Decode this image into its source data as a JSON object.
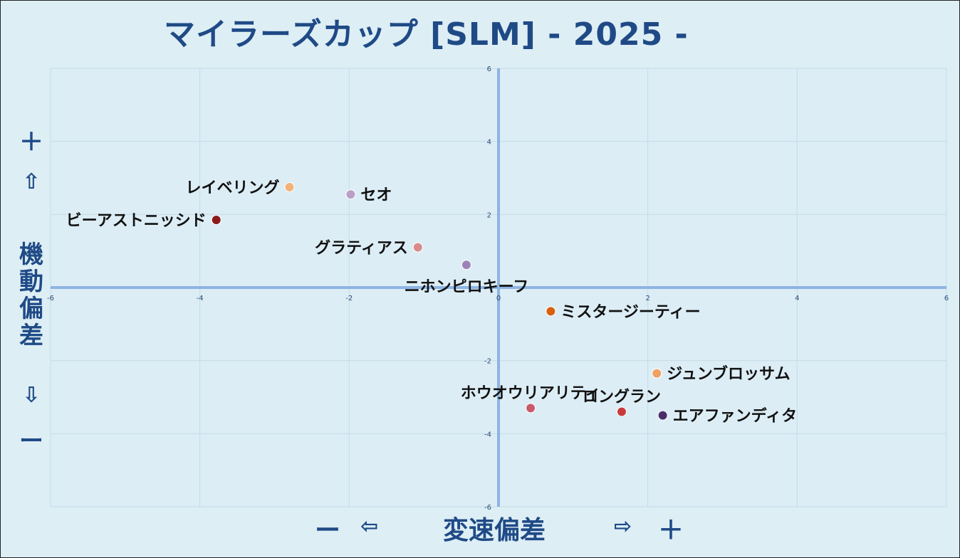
{
  "title": "マイラーズカップ [SLM]  - 2025 -",
  "y_axis_labels": {
    "plus": "＋",
    "up_arrow": "⇧",
    "name_chars": [
      "機",
      "動",
      "偏",
      "差"
    ],
    "down_arrow": "⇩",
    "minus": "ー"
  },
  "x_axis_labels": {
    "minus": "ー",
    "left_arrow": "⇦",
    "name": "変速偏差",
    "right_arrow": "⇨",
    "plus": "＋"
  },
  "chart_data": {
    "type": "scatter",
    "title": "マイラーズカップ [SLM]  - 2025 -",
    "xlabel": "変速偏差",
    "ylabel": "機動偏差",
    "xlim": [
      -6,
      6
    ],
    "ylim": [
      -6,
      6
    ],
    "x_ticks": [
      "-6",
      "-4",
      "-2",
      "0",
      "2",
      "4",
      "6"
    ],
    "y_ticks": [
      "6",
      "4",
      "2",
      "-2",
      "-4",
      "-6"
    ],
    "grid": true,
    "points": [
      {
        "name": "レイベリング",
        "x": -2.8,
        "y": 2.75,
        "color": "#f2b27a",
        "label_side": "left"
      },
      {
        "name": "セオ",
        "x": -1.98,
        "y": 2.55,
        "color": "#b9a0c8",
        "label_side": "right"
      },
      {
        "name": "ビーアストニッシド",
        "x": -3.78,
        "y": 1.85,
        "color": "#8b1a1a",
        "label_side": "left"
      },
      {
        "name": "グラティアス",
        "x": -1.08,
        "y": 1.1,
        "color": "#d98a8a",
        "label_side": "left"
      },
      {
        "name": "ニホンピロキーフ",
        "x": -0.43,
        "y": 0.62,
        "color": "#9d82b8",
        "label_side": "below"
      },
      {
        "name": "ミスタージーティー",
        "x": 0.7,
        "y": -0.65,
        "color": "#d95f0e",
        "label_side": "right"
      },
      {
        "name": "ジュンブロッサム",
        "x": 2.12,
        "y": -2.35,
        "color": "#f0a060",
        "label_side": "right"
      },
      {
        "name": "ホウオウリアリティ",
        "x": 0.43,
        "y": -3.3,
        "color": "#c85a6a",
        "label_side": "above"
      },
      {
        "name": "ロングラン",
        "x": 1.65,
        "y": -3.4,
        "color": "#c83a3a",
        "label_side": "above"
      },
      {
        "name": "エアファンディタ",
        "x": 2.2,
        "y": -3.5,
        "color": "#4a2d6a",
        "label_side": "right"
      }
    ]
  }
}
